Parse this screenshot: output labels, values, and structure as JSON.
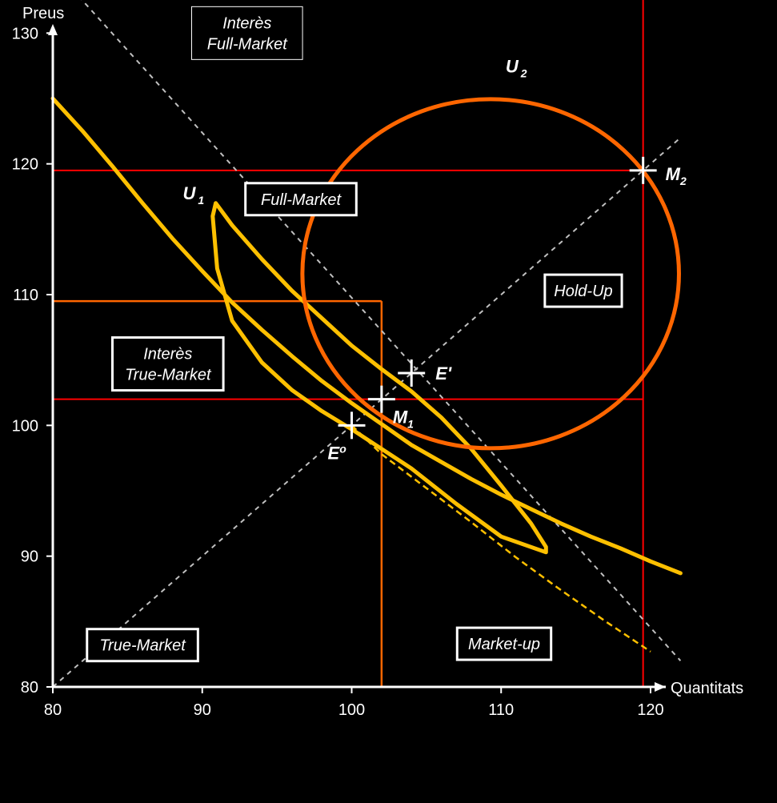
{
  "chart_data": {
    "type": "line",
    "xlabel": "Quantitats",
    "ylabel": "Preus",
    "xlim": [
      80,
      122
    ],
    "ylim": [
      80,
      135
    ],
    "xticks": [
      80,
      90,
      100,
      110,
      120
    ],
    "yticks": [
      80,
      90,
      100,
      110,
      120,
      130
    ],
    "grid": false,
    "colors": {
      "background": "#000000",
      "axis": "#ffffff",
      "indifference": "#ffc000",
      "indifference_outer": "#ff6600",
      "region_boundary_outer": "#ff0000",
      "region_boundary_inner": "#ff6600",
      "reference_line": "#c0c0c0",
      "dashed_yellow": "#ffc000"
    },
    "series": [
      {
        "key": "yellow_curve_long",
        "style": "solid",
        "values": [
          [
            80,
            125
          ],
          [
            82,
            122.5
          ],
          [
            84,
            119.8
          ],
          [
            86,
            117
          ],
          [
            88,
            114.3
          ],
          [
            90,
            111.8
          ],
          [
            92,
            109.4
          ],
          [
            94,
            107.3
          ],
          [
            96,
            105.3
          ],
          [
            98,
            103.4
          ],
          [
            100,
            101.7
          ],
          [
            102,
            100.1
          ],
          [
            104,
            98.5
          ],
          [
            106,
            97.2
          ],
          [
            108,
            95.9
          ],
          [
            110,
            94.7
          ],
          [
            112,
            93.6
          ],
          [
            114,
            92.5
          ],
          [
            116,
            91.5
          ],
          [
            118,
            90.6
          ],
          [
            120,
            89.6
          ],
          [
            122,
            88.7
          ]
        ]
      },
      {
        "key": "U1_loop",
        "style": "solid",
        "values": [
          [
            113,
            90.3
          ],
          [
            110,
            91.5
          ],
          [
            107,
            94.0
          ],
          [
            104,
            96.7
          ],
          [
            102,
            98.2
          ],
          [
            100,
            99.7
          ],
          [
            98,
            101.1
          ],
          [
            96,
            102.7
          ],
          [
            94,
            104.8
          ],
          [
            92,
            108.0
          ],
          [
            91,
            112.0
          ],
          [
            90.7,
            116.0
          ],
          [
            90.9,
            117.0
          ],
          [
            92,
            115.3
          ],
          [
            94,
            112.7
          ],
          [
            96,
            110.3
          ],
          [
            98,
            108.2
          ],
          [
            100,
            106.1
          ],
          [
            102,
            104.3
          ],
          [
            104,
            102.6
          ],
          [
            106,
            100.6
          ],
          [
            108,
            98.2
          ],
          [
            110,
            95.4
          ],
          [
            112,
            92.5
          ],
          [
            113,
            90.7
          ],
          [
            113,
            90.3
          ]
        ]
      },
      {
        "key": "U2_ellipse",
        "style": "solid",
        "shape": "ellipse",
        "values": [
          [
            110.5,
            125
          ],
          [
            113.2,
            124.4
          ],
          [
            115.6,
            122.9
          ],
          [
            117.8,
            120.7
          ],
          [
            119.7,
            117.9
          ],
          [
            121.1,
            114.5
          ],
          [
            122,
            111
          ],
          [
            121.4,
            107
          ],
          [
            119.7,
            103.7
          ],
          [
            117.3,
            101.0
          ],
          [
            114.5,
            99.2
          ],
          [
            111.5,
            98.4
          ],
          [
            108.2,
            98.3
          ],
          [
            104.8,
            98.8
          ],
          [
            101.8,
            100.6
          ],
          [
            99.3,
            103.5
          ],
          [
            97.5,
            107
          ],
          [
            96.8,
            111
          ],
          [
            97.2,
            115
          ],
          [
            98.7,
            118.8
          ],
          [
            101.1,
            121.8
          ],
          [
            104.2,
            123.9
          ],
          [
            107.3,
            124.9
          ],
          [
            110.5,
            125
          ]
        ]
      },
      {
        "key": "gray_downward_line",
        "style": "dashed",
        "values": [
          [
            80,
            135
          ],
          [
            122,
            82
          ]
        ]
      },
      {
        "key": "gray_45_line",
        "style": "dashed",
        "values": [
          [
            80,
            80
          ],
          [
            122,
            122
          ]
        ]
      },
      {
        "key": "yellow_dashed_line",
        "style": "dashed",
        "values": [
          [
            100,
            100
          ],
          [
            102,
            97.8
          ],
          [
            105,
            95.2
          ],
          [
            108,
            92.6
          ],
          [
            111,
            89.9
          ],
          [
            114,
            87.4
          ],
          [
            117,
            85
          ],
          [
            120,
            82.7
          ]
        ]
      }
    ],
    "regions": [
      {
        "key": "red_upper_rect",
        "x": [
          80,
          119.5
        ],
        "y": [
          119.5,
          134
        ],
        "color": "region_boundary_outer",
        "type": "hline"
      },
      {
        "key": "red_outer_rect",
        "x": [
          80,
          119.5
        ],
        "y": [
          102,
          134
        ],
        "color": "region_boundary_outer",
        "type": "box"
      },
      {
        "key": "orange_rect",
        "x": [
          80,
          102
        ],
        "y": [
          80,
          109.5
        ],
        "color": "region_boundary_inner",
        "type": "box"
      }
    ],
    "points": [
      {
        "key": "E0",
        "x": 100,
        "y": 100,
        "label": "E",
        "sub": "o",
        "sup": true,
        "label_dx": -30,
        "label_dy": 42
      },
      {
        "key": "M1",
        "x": 102,
        "y": 102,
        "label": "M",
        "sub": "1",
        "label_dx": 14,
        "label_dy": 30
      },
      {
        "key": "Eprime",
        "x": 104,
        "y": 104,
        "label": "E'",
        "sub": "",
        "label_dx": 30,
        "label_dy": 8
      },
      {
        "key": "M2",
        "x": 119.5,
        "y": 119.5,
        "label": "M",
        "sub": "2",
        "label_dx": 28,
        "label_dy": 12
      }
    ],
    "curve_labels": [
      {
        "key": "U1",
        "x": 88.7,
        "y": 117.3,
        "label": "U",
        "sub": "1"
      },
      {
        "key": "U2",
        "x": 110.3,
        "y": 127,
        "label": "U",
        "sub": "2"
      }
    ],
    "annotations": [
      {
        "key": "interes_full_market",
        "lines": [
          "Interès",
          "Full-Market"
        ],
        "x": 93,
        "y": 130,
        "boxed": true,
        "border": "thin"
      },
      {
        "key": "full_market",
        "lines": [
          "Full-Market"
        ],
        "x": 96.6,
        "y": 117.3,
        "boxed": true,
        "border": "thick"
      },
      {
        "key": "interes_true_market",
        "lines": [
          "Interès",
          "True-Market"
        ],
        "x": 87.7,
        "y": 104.7,
        "boxed": true,
        "border": "thick"
      },
      {
        "key": "hold_up",
        "lines": [
          "Hold-Up"
        ],
        "x": 115.5,
        "y": 110.3,
        "boxed": true,
        "border": "thick"
      },
      {
        "key": "true_market",
        "lines": [
          "True-Market"
        ],
        "x": 86,
        "y": 83.2,
        "boxed": true,
        "border": "thick"
      },
      {
        "key": "market_up",
        "lines": [
          "Market-up"
        ],
        "x": 110.2,
        "y": 83.3,
        "boxed": true,
        "border": "thick"
      }
    ]
  }
}
